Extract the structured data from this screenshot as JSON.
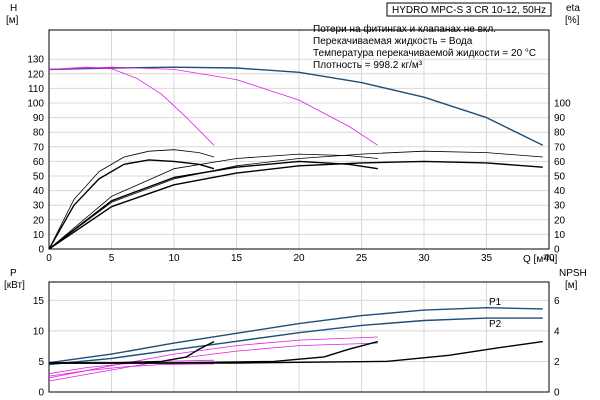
{
  "title": "HYDRO MPC-S 3 CR 10-12, 50Hz",
  "notes": [
    "Потери на фитингах и клапанах не вкл.",
    "Перекачиваемая жидкость = Вода",
    "Температура перекачиваемой жидкости = 20 °C",
    "Плотность = 998.2 кг/м³"
  ],
  "colors": {
    "head": "#1f4e79",
    "power": "#1f4e79",
    "eta": "#000000",
    "npsh": "#000000",
    "partial": "#e020e0"
  },
  "chart_data": [
    {
      "type": "line",
      "panel": "head",
      "xlabel": "Q [м³/ч]",
      "ylabel_left": [
        "H",
        "[м]"
      ],
      "ylabel_right": [
        "eta",
        "[%]"
      ],
      "xlim": [
        0,
        40
      ],
      "ylim": [
        0,
        150
      ],
      "y2lim": [
        0,
        150
      ],
      "xticks": [
        0,
        5,
        10,
        15,
        20,
        25,
        30,
        35,
        40
      ],
      "yticks": [
        0,
        10,
        20,
        30,
        40,
        50,
        60,
        70,
        80,
        90,
        100,
        110,
        120,
        130
      ],
      "y2ticks": [
        0,
        10,
        20,
        30,
        40,
        50,
        60,
        70,
        80,
        90,
        100
      ],
      "grid": true,
      "series": [
        {
          "role": "head-full",
          "color": "#1f4e79",
          "x": [
            0,
            5,
            10,
            15,
            20,
            25,
            30,
            35,
            39.5
          ],
          "y": [
            123,
            124,
            124.5,
            124,
            121,
            114,
            104,
            90,
            71
          ]
        },
        {
          "role": "head-partial-1",
          "color": "#e020e0",
          "x": [
            0,
            3,
            5,
            7,
            9,
            11,
            13.2
          ],
          "y": [
            123,
            124.5,
            123.5,
            117,
            106,
            90,
            71
          ]
        },
        {
          "role": "head-partial-2",
          "color": "#e020e0",
          "x": [
            0,
            5,
            10,
            15,
            20,
            24,
            26.3
          ],
          "y": [
            123,
            124.5,
            123,
            116,
            102,
            84,
            71
          ]
        },
        {
          "role": "eta-1",
          "color": "#000000",
          "x": [
            0,
            2,
            4,
            6,
            8,
            10,
            12,
            13.2
          ],
          "y": [
            0,
            30,
            48,
            58,
            61,
            60,
            58,
            55
          ]
        },
        {
          "role": "eta-2",
          "color": "#000000",
          "x": [
            0,
            2,
            4,
            6,
            8,
            10,
            12,
            13.2
          ],
          "y": [
            0,
            34,
            53,
            63,
            67,
            68,
            66,
            63
          ]
        },
        {
          "role": "eta-3",
          "color": "#000000",
          "x": [
            0,
            5,
            10,
            15,
            20,
            24,
            26.3
          ],
          "y": [
            0,
            33,
            49,
            56,
            60,
            58,
            55
          ]
        },
        {
          "role": "eta-4",
          "color": "#000000",
          "x": [
            0,
            5,
            10,
            15,
            20,
            24,
            26.3
          ],
          "y": [
            0,
            36,
            55,
            62,
            65,
            64,
            62
          ]
        },
        {
          "role": "eta-5",
          "color": "#000000",
          "x": [
            0,
            5,
            10,
            15,
            20,
            25,
            30,
            35,
            39.5
          ],
          "y": [
            0,
            29,
            44,
            52,
            57,
            59,
            60,
            59,
            56
          ]
        },
        {
          "role": "eta-6",
          "color": "#000000",
          "x": [
            0,
            5,
            10,
            15,
            20,
            25,
            30,
            35,
            39.5
          ],
          "y": [
            0,
            32,
            48,
            57,
            62,
            65,
            67,
            66,
            63
          ]
        }
      ]
    },
    {
      "type": "line",
      "panel": "power",
      "ylabel_left": [
        "P",
        "[кВт]"
      ],
      "ylabel_right": [
        "NPSH",
        "[м]"
      ],
      "xlim": [
        0,
        40
      ],
      "ylim": [
        0,
        18
      ],
      "y2lim": [
        0,
        7.2
      ],
      "yticks": [
        0,
        5,
        10,
        15
      ],
      "y2ticks": [
        0,
        2,
        4,
        6
      ],
      "grid": true,
      "series": [
        {
          "name": "P1",
          "role": "p1-full",
          "color": "#1f4e79",
          "x": [
            0,
            5,
            10,
            15,
            20,
            25,
            30,
            35,
            39.5
          ],
          "y": [
            4.8,
            6.2,
            8.0,
            9.6,
            11.2,
            12.5,
            13.4,
            13.8,
            13.6
          ]
        },
        {
          "name": "P2",
          "role": "p2-full",
          "color": "#1f4e79",
          "x": [
            0,
            5,
            10,
            15,
            20,
            25,
            30,
            35,
            39.5
          ],
          "y": [
            4.5,
            5.5,
            6.9,
            8.3,
            9.7,
            10.9,
            11.7,
            12.1,
            12.1
          ]
        },
        {
          "role": "p-partial-1a",
          "color": "#e020e0",
          "x": [
            0,
            3,
            6,
            9,
            13.2
          ],
          "y": [
            3.0,
            4.0,
            4.6,
            5.0,
            5.2
          ]
        },
        {
          "role": "p-partial-1b",
          "color": "#e020e0",
          "x": [
            0,
            3,
            6,
            9,
            13.2
          ],
          "y": [
            2.6,
            3.5,
            4.1,
            4.5,
            4.6
          ]
        },
        {
          "role": "p-partial-2a",
          "color": "#e020e0",
          "x": [
            0,
            5,
            10,
            15,
            20,
            26.3
          ],
          "y": [
            2.3,
            4.3,
            6.2,
            7.6,
            8.5,
            9.0
          ]
        },
        {
          "role": "p-partial-2b",
          "color": "#e020e0",
          "x": [
            0,
            5,
            10,
            15,
            20,
            26.3
          ],
          "y": [
            1.8,
            3.6,
            5.4,
            6.7,
            7.6,
            8.0
          ]
        },
        {
          "role": "npsh-1",
          "color": "#000000",
          "axis": "right",
          "x": [
            0,
            5,
            9,
            11,
            12,
            13.2
          ],
          "y": [
            1.9,
            1.9,
            2.0,
            2.3,
            2.8,
            3.3
          ]
        },
        {
          "role": "npsh-2",
          "color": "#000000",
          "axis": "right",
          "x": [
            0,
            10,
            18,
            22,
            24,
            26.3
          ],
          "y": [
            1.9,
            1.9,
            2.0,
            2.3,
            2.8,
            3.3
          ]
        },
        {
          "role": "npsh-3",
          "color": "#000000",
          "axis": "right",
          "x": [
            0,
            15,
            27,
            32,
            36,
            39.5
          ],
          "y": [
            1.9,
            1.9,
            2.0,
            2.4,
            2.9,
            3.3
          ]
        }
      ]
    }
  ]
}
